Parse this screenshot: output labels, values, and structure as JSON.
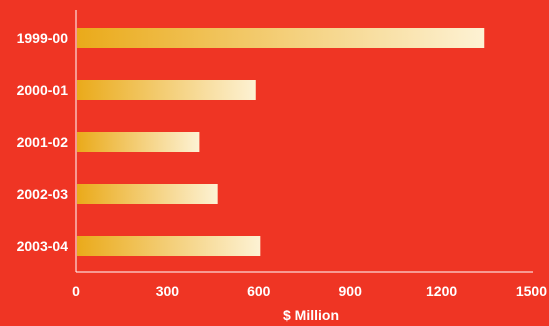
{
  "chart_data": {
    "type": "bar",
    "orientation": "horizontal",
    "categories": [
      "1999-00",
      "2000-01",
      "2001-02",
      "2002-03",
      "2003-04"
    ],
    "values": [
      1340,
      590,
      405,
      465,
      605
    ],
    "xlabel": "$ Million",
    "ylabel": "",
    "xlim": [
      0,
      1500
    ],
    "xticks": [
      "0",
      "300",
      "600",
      "900",
      "1200",
      "1500"
    ],
    "grid": false,
    "legend": "none"
  },
  "colors": {
    "background": "#ef3524",
    "bar_start": "#eaaa1a",
    "bar_end": "#fdf2d4",
    "axis": "#ffffff",
    "text": "#ffffff"
  }
}
